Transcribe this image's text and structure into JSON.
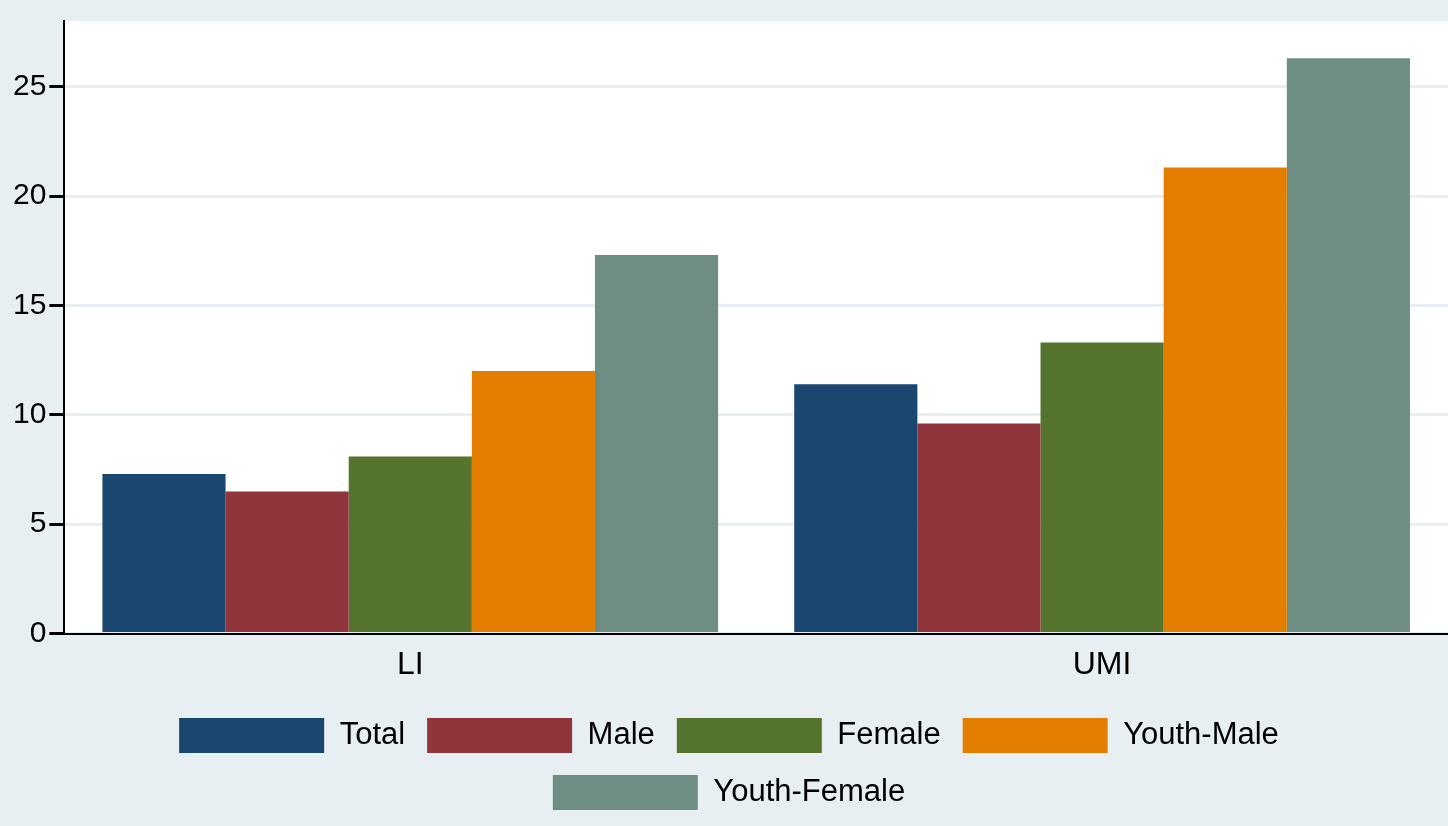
{
  "chart_data": {
    "type": "bar",
    "categories": [
      "LI",
      "UMI"
    ],
    "series": [
      {
        "name": "Total",
        "color": "#1a476f",
        "values": [
          7.3,
          11.4
        ]
      },
      {
        "name": "Male",
        "color": "#90353b",
        "values": [
          6.5,
          9.6
        ]
      },
      {
        "name": "Female",
        "color": "#55752f",
        "values": [
          8.1,
          13.3
        ]
      },
      {
        "name": "Youth-Male",
        "color": "#e37e00",
        "values": [
          12.0,
          21.3
        ]
      },
      {
        "name": "Youth-Female",
        "color": "#6e8e84",
        "values": [
          17.3,
          26.3
        ]
      }
    ],
    "ylim": [
      0,
      28
    ],
    "yticks": [
      0,
      5,
      10,
      15,
      20,
      25
    ],
    "grid": "y",
    "legend": "bottom"
  }
}
